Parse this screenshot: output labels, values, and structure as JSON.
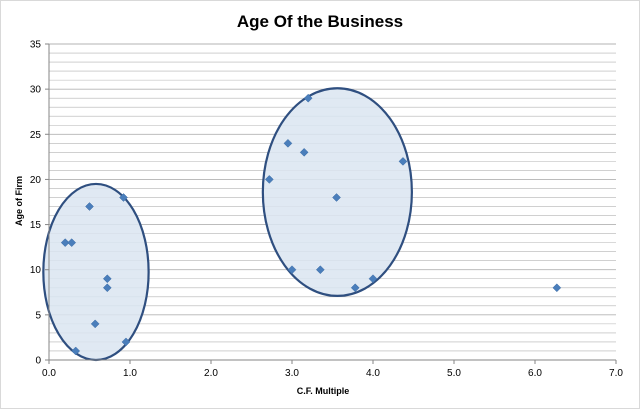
{
  "chart_data": {
    "type": "scatter",
    "title": "Age Of the Business",
    "xlabel": "C.F. Multiple",
    "ylabel": "Age of Firm",
    "xlim": [
      0,
      7
    ],
    "ylim": [
      0,
      35
    ],
    "x_ticks": [
      "0.0",
      "1.0",
      "2.0",
      "3.0",
      "4.0",
      "5.0",
      "6.0",
      "7.0"
    ],
    "y_ticks": [
      "0",
      "5",
      "10",
      "15",
      "20",
      "25",
      "30",
      "35"
    ],
    "grid": "horizontal",
    "legend": "none",
    "marker": "diamond",
    "marker_color": "#4a7ebb",
    "points": [
      {
        "x": 0.2,
        "y": 13
      },
      {
        "x": 0.28,
        "y": 13
      },
      {
        "x": 0.5,
        "y": 17
      },
      {
        "x": 0.92,
        "y": 18
      },
      {
        "x": 0.72,
        "y": 9
      },
      {
        "x": 0.72,
        "y": 8
      },
      {
        "x": 0.57,
        "y": 4
      },
      {
        "x": 0.33,
        "y": 1
      },
      {
        "x": 0.95,
        "y": 2
      },
      {
        "x": 3.2,
        "y": 29
      },
      {
        "x": 2.95,
        "y": 24
      },
      {
        "x": 3.15,
        "y": 23
      },
      {
        "x": 4.37,
        "y": 22
      },
      {
        "x": 2.72,
        "y": 20
      },
      {
        "x": 3.55,
        "y": 18
      },
      {
        "x": 3.0,
        "y": 10
      },
      {
        "x": 3.35,
        "y": 10
      },
      {
        "x": 4.0,
        "y": 9
      },
      {
        "x": 3.78,
        "y": 8
      },
      {
        "x": 6.27,
        "y": 8
      }
    ],
    "annotations": [
      {
        "shape": "ellipse",
        "cx": 0.58,
        "cy": 9.75,
        "rx": 0.65,
        "ry": 9.75
      },
      {
        "shape": "ellipse",
        "cx": 3.56,
        "cy": 18.6,
        "rx": 0.92,
        "ry": 11.5
      }
    ],
    "colors": {
      "ellipse_fill": "#dbe5f1",
      "ellipse_stroke": "#2f4f80",
      "grid": "#b3b3b3",
      "axis": "#868686"
    }
  }
}
